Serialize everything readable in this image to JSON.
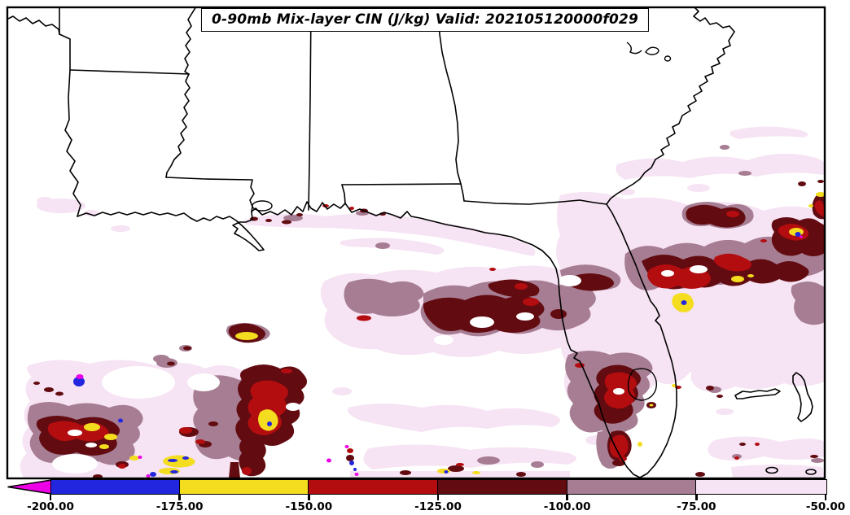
{
  "title": {
    "text": "0-90mb Mix-layer CIN (J/kg) Valid: 202105120000f029"
  },
  "colorbar": {
    "ticks": [
      "-200.00",
      "-175.00",
      "-150.00",
      "-125.00",
      "-100.00",
      "-75.00",
      "-50.00"
    ],
    "underflow_arrow": {
      "direction": "left",
      "color": "#ee00e7",
      "meaning": "values below -200.00"
    },
    "segments": [
      {
        "from": "-200.00",
        "to": "-175.00",
        "color": "#2326df"
      },
      {
        "from": "-175.00",
        "to": "-150.00",
        "color": "#f3dd1e"
      },
      {
        "from": "-150.00",
        "to": "-125.00",
        "color": "#b30d10"
      },
      {
        "from": "-125.00",
        "to": "-100.00",
        "color": "#620b10"
      },
      {
        "from": "-100.00",
        "to": "-75.00",
        "color": "#a67d92"
      },
      {
        "from": "-75.00",
        "to": "-50.00",
        "color": "#f6e3f3"
      }
    ],
    "outline_color": "#000000"
  },
  "map_colors": {
    "background": "#ffffff",
    "border": "#000000",
    "contour_pale": "#f6e3f3",
    "contour_mauve": "#a67d92",
    "contour_maroon": "#620b10",
    "contour_red": "#b30d10",
    "contour_yellow": "#f3dd1e",
    "contour_blue": "#2326df",
    "contour_magenta": "#ee00e7"
  }
}
